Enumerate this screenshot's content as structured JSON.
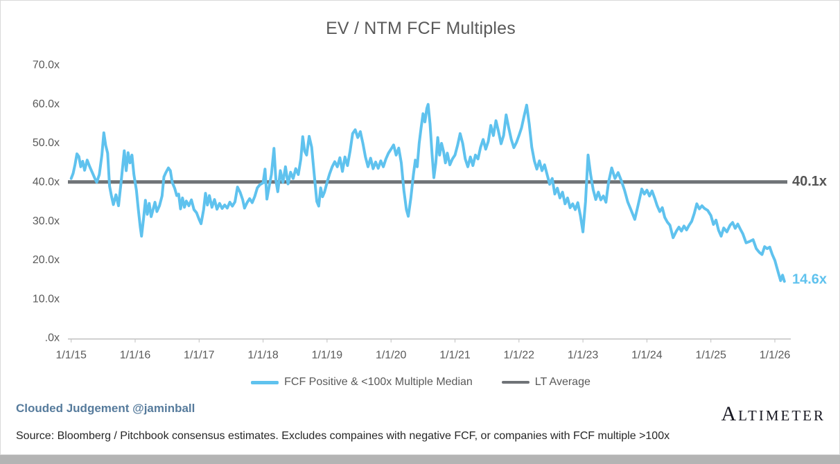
{
  "title": "EV / NTM FCF Multiples",
  "annotations": {
    "lt_average_label": "40.1x",
    "last_value_label": "14.6x"
  },
  "legend": {
    "fcf_label": "FCF Positive & <100x Multiple Median",
    "lt_label": "LT Average"
  },
  "footer": {
    "byline": "Clouded Judgement @jaminball",
    "brand": "Altimeter",
    "source": "Source: Bloomberg / Pitchbook consensus estimates. Excludes compaines with negative FCF, or companies with FCF multiple >100x"
  },
  "colors": {
    "fcf_line": "#5fc2ee",
    "lt_line": "#6f7377",
    "axis_text": "#595959",
    "axis_line": "#bfbfbf",
    "annotation_dark": "#555555"
  },
  "chart_data": {
    "type": "line",
    "title": "EV / NTM FCF Multiples",
    "xlabel": "",
    "ylabel": "",
    "ylim": [
      0,
      70
    ],
    "xlim_years_since_2015": [
      0,
      11.3
    ],
    "grid": false,
    "legend_position": "bottom",
    "y_ticks": [
      {
        "value": 70,
        "label": "70.0x"
      },
      {
        "value": 60,
        "label": "60.0x"
      },
      {
        "value": 50,
        "label": "50.0x"
      },
      {
        "value": 40,
        "label": "40.0x"
      },
      {
        "value": 30,
        "label": "30.0x"
      },
      {
        "value": 20,
        "label": "20.0x"
      },
      {
        "value": 10,
        "label": "10.0x"
      },
      {
        "value": 0,
        "label": ".0x"
      }
    ],
    "x_tick_labels": [
      "1/1/15",
      "1/1/16",
      "1/1/17",
      "1/1/18",
      "1/1/19",
      "1/1/20",
      "1/1/21",
      "1/1/22",
      "1/1/23",
      "1/1/24",
      "1/1/25",
      "1/1/26"
    ],
    "lt_average": 40.1,
    "last_value": 14.6,
    "series": [
      {
        "name": "FCF Positive & <100x Multiple Median",
        "color": "#5fc2ee",
        "points_t_years_since_2015_vs_multiple": [
          [
            0,
            41
          ],
          [
            0.03,
            42.3
          ],
          [
            0.06,
            44.5
          ],
          [
            0.09,
            47.3
          ],
          [
            0.12,
            46.6
          ],
          [
            0.15,
            44
          ],
          [
            0.18,
            45.4
          ],
          [
            0.21,
            43.1
          ],
          [
            0.25,
            45.7
          ],
          [
            0.29,
            44
          ],
          [
            0.33,
            42.5
          ],
          [
            0.37,
            41
          ],
          [
            0.4,
            40
          ],
          [
            0.44,
            42
          ],
          [
            0.48,
            47
          ],
          [
            0.51,
            52.7
          ],
          [
            0.54,
            49.5
          ],
          [
            0.57,
            47.5
          ],
          [
            0.6,
            39
          ],
          [
            0.63,
            36.5
          ],
          [
            0.66,
            34.3
          ],
          [
            0.7,
            36.8
          ],
          [
            0.74,
            34
          ],
          [
            0.78,
            40
          ],
          [
            0.83,
            48.1
          ],
          [
            0.86,
            43
          ],
          [
            0.89,
            47.6
          ],
          [
            0.92,
            45
          ],
          [
            0.95,
            47
          ],
          [
            0.98,
            42
          ],
          [
            1.02,
            38
          ],
          [
            1.05,
            33
          ],
          [
            1.08,
            28.5
          ],
          [
            1.1,
            26.2
          ],
          [
            1.13,
            30.5
          ],
          [
            1.16,
            35.4
          ],
          [
            1.19,
            31.8
          ],
          [
            1.22,
            34.6
          ],
          [
            1.25,
            31.2
          ],
          [
            1.28,
            33
          ],
          [
            1.31,
            34.9
          ],
          [
            1.34,
            32.5
          ],
          [
            1.38,
            34
          ],
          [
            1.42,
            36.5
          ],
          [
            1.45,
            41.4
          ],
          [
            1.48,
            42.5
          ],
          [
            1.52,
            43.7
          ],
          [
            1.55,
            43
          ],
          [
            1.58,
            40
          ],
          [
            1.62,
            38.4
          ],
          [
            1.65,
            36.6
          ],
          [
            1.68,
            37
          ],
          [
            1.71,
            33.2
          ],
          [
            1.74,
            36
          ],
          [
            1.77,
            33.6
          ],
          [
            1.8,
            35.2
          ],
          [
            1.84,
            34
          ],
          [
            1.88,
            35.5
          ],
          [
            1.92,
            33
          ],
          [
            1.96,
            32.2
          ],
          [
            2,
            30.5
          ],
          [
            2.03,
            29.4
          ],
          [
            2.07,
            33
          ],
          [
            2.1,
            37.2
          ],
          [
            2.13,
            34.2
          ],
          [
            2.16,
            36.6
          ],
          [
            2.2,
            33.6
          ],
          [
            2.24,
            35.6
          ],
          [
            2.28,
            33.1
          ],
          [
            2.32,
            34.6
          ],
          [
            2.36,
            33.3
          ],
          [
            2.4,
            34.2
          ],
          [
            2.44,
            33.4
          ],
          [
            2.48,
            34.9
          ],
          [
            2.52,
            33.9
          ],
          [
            2.56,
            35
          ],
          [
            2.6,
            38.8
          ],
          [
            2.64,
            37.5
          ],
          [
            2.68,
            35.6
          ],
          [
            2.71,
            33.4
          ],
          [
            2.75,
            34.8
          ],
          [
            2.79,
            35.8
          ],
          [
            2.83,
            34.8
          ],
          [
            2.87,
            36.4
          ],
          [
            2.91,
            38.6
          ],
          [
            2.95,
            39.4
          ],
          [
            3,
            39.9
          ],
          [
            3.03,
            43.4
          ],
          [
            3.06,
            35.7
          ],
          [
            3.09,
            38.5
          ],
          [
            3.13,
            42
          ],
          [
            3.17,
            48.7
          ],
          [
            3.2,
            40.5
          ],
          [
            3.23,
            37.6
          ],
          [
            3.27,
            43
          ],
          [
            3.31,
            40
          ],
          [
            3.35,
            44
          ],
          [
            3.39,
            39.6
          ],
          [
            3.43,
            42.6
          ],
          [
            3.47,
            41
          ],
          [
            3.51,
            43.5
          ],
          [
            3.55,
            42
          ],
          [
            3.59,
            46
          ],
          [
            3.62,
            51.7
          ],
          [
            3.65,
            48
          ],
          [
            3.68,
            47
          ],
          [
            3.72,
            51.8
          ],
          [
            3.76,
            49
          ],
          [
            3.8,
            42
          ],
          [
            3.84,
            35.1
          ],
          [
            3.87,
            33.9
          ],
          [
            3.9,
            38.6
          ],
          [
            3.93,
            36.3
          ],
          [
            3.96,
            37.5
          ],
          [
            4,
            40
          ],
          [
            4.04,
            42.2
          ],
          [
            4.08,
            44
          ],
          [
            4.12,
            45.3
          ],
          [
            4.16,
            44
          ],
          [
            4.2,
            46.3
          ],
          [
            4.24,
            42.8
          ],
          [
            4.28,
            46.5
          ],
          [
            4.32,
            44.3
          ],
          [
            4.36,
            48
          ],
          [
            4.4,
            52.5
          ],
          [
            4.44,
            53.5
          ],
          [
            4.48,
            51.5
          ],
          [
            4.52,
            53
          ],
          [
            4.56,
            50
          ],
          [
            4.6,
            46.5
          ],
          [
            4.64,
            44
          ],
          [
            4.68,
            46.2
          ],
          [
            4.72,
            43.5
          ],
          [
            4.76,
            45.2
          ],
          [
            4.8,
            43.6
          ],
          [
            4.84,
            45.5
          ],
          [
            4.88,
            44
          ],
          [
            4.92,
            46
          ],
          [
            4.96,
            47.5
          ],
          [
            5,
            48.5
          ],
          [
            5.04,
            49.6
          ],
          [
            5.08,
            47
          ],
          [
            5.12,
            48.8
          ],
          [
            5.16,
            45
          ],
          [
            5.2,
            38
          ],
          [
            5.24,
            33
          ],
          [
            5.27,
            31.3
          ],
          [
            5.31,
            36
          ],
          [
            5.35,
            42
          ],
          [
            5.38,
            45.7
          ],
          [
            5.41,
            44
          ],
          [
            5.44,
            50
          ],
          [
            5.47,
            54
          ],
          [
            5.5,
            57.6
          ],
          [
            5.53,
            55.5
          ],
          [
            5.56,
            59
          ],
          [
            5.58,
            60
          ],
          [
            5.61,
            55
          ],
          [
            5.64,
            47.5
          ],
          [
            5.67,
            41.2
          ],
          [
            5.7,
            45
          ],
          [
            5.73,
            51.5
          ],
          [
            5.76,
            47
          ],
          [
            5.79,
            50
          ],
          [
            5.82,
            48
          ],
          [
            5.85,
            45
          ],
          [
            5.88,
            47.5
          ],
          [
            5.92,
            44.5
          ],
          [
            5.96,
            46
          ],
          [
            6,
            47
          ],
          [
            6.04,
            49.5
          ],
          [
            6.08,
            52.5
          ],
          [
            6.12,
            50
          ],
          [
            6.16,
            46
          ],
          [
            6.2,
            44
          ],
          [
            6.24,
            46.5
          ],
          [
            6.28,
            44.3
          ],
          [
            6.32,
            47
          ],
          [
            6.36,
            46
          ],
          [
            6.4,
            49
          ],
          [
            6.44,
            51
          ],
          [
            6.48,
            48.5
          ],
          [
            6.52,
            50.5
          ],
          [
            6.56,
            54.6
          ],
          [
            6.6,
            52
          ],
          [
            6.64,
            55.8
          ],
          [
            6.68,
            53
          ],
          [
            6.72,
            49.9
          ],
          [
            6.76,
            52
          ],
          [
            6.8,
            57.3
          ],
          [
            6.84,
            54
          ],
          [
            6.88,
            51
          ],
          [
            6.92,
            48.9
          ],
          [
            6.96,
            50.2
          ],
          [
            7,
            52
          ],
          [
            7.04,
            54
          ],
          [
            7.08,
            57
          ],
          [
            7.12,
            59.8
          ],
          [
            7.16,
            55
          ],
          [
            7.2,
            49
          ],
          [
            7.24,
            45.5
          ],
          [
            7.28,
            43.4
          ],
          [
            7.32,
            45.5
          ],
          [
            7.36,
            43
          ],
          [
            7.4,
            44.5
          ],
          [
            7.44,
            42
          ],
          [
            7.48,
            39.5
          ],
          [
            7.52,
            41
          ],
          [
            7.56,
            37
          ],
          [
            7.6,
            38.5
          ],
          [
            7.64,
            36
          ],
          [
            7.68,
            37.5
          ],
          [
            7.72,
            34.5
          ],
          [
            7.76,
            36
          ],
          [
            7.8,
            33.5
          ],
          [
            7.84,
            34.5
          ],
          [
            7.88,
            33
          ],
          [
            7.92,
            34.8
          ],
          [
            7.96,
            31.5
          ],
          [
            8,
            27.3
          ],
          [
            8.04,
            35
          ],
          [
            8.08,
            47
          ],
          [
            8.12,
            42
          ],
          [
            8.16,
            38.1
          ],
          [
            8.2,
            35.6
          ],
          [
            8.24,
            37.5
          ],
          [
            8.28,
            35.5
          ],
          [
            8.32,
            36.5
          ],
          [
            8.36,
            34.9
          ],
          [
            8.4,
            40
          ],
          [
            8.45,
            43.7
          ],
          [
            8.5,
            41
          ],
          [
            8.55,
            42.5
          ],
          [
            8.6,
            40.4
          ],
          [
            8.65,
            38
          ],
          [
            8.7,
            35
          ],
          [
            8.75,
            33
          ],
          [
            8.81,
            30.5
          ],
          [
            8.86,
            34
          ],
          [
            8.92,
            38.3
          ],
          [
            8.96,
            37
          ],
          [
            9,
            38
          ],
          [
            9.04,
            36.5
          ],
          [
            9.08,
            37.8
          ],
          [
            9.12,
            36
          ],
          [
            9.16,
            34
          ],
          [
            9.2,
            32.5
          ],
          [
            9.24,
            33.5
          ],
          [
            9.28,
            31
          ],
          [
            9.32,
            29.8
          ],
          [
            9.36,
            29
          ],
          [
            9.41,
            25.8
          ],
          [
            9.46,
            27.5
          ],
          [
            9.5,
            28.5
          ],
          [
            9.54,
            27.5
          ],
          [
            9.58,
            28.8
          ],
          [
            9.62,
            27.8
          ],
          [
            9.66,
            29
          ],
          [
            9.7,
            30
          ],
          [
            9.74,
            32
          ],
          [
            9.78,
            34.5
          ],
          [
            9.82,
            33.2
          ],
          [
            9.86,
            34
          ],
          [
            9.9,
            33.3
          ],
          [
            9.95,
            32.8
          ],
          [
            10,
            31.5
          ],
          [
            10.04,
            29.2
          ],
          [
            10.08,
            30.3
          ],
          [
            10.12,
            27.7
          ],
          [
            10.16,
            26.2
          ],
          [
            10.2,
            28.3
          ],
          [
            10.25,
            27.3
          ],
          [
            10.3,
            29
          ],
          [
            10.34,
            29.7
          ],
          [
            10.38,
            28.2
          ],
          [
            10.42,
            29.3
          ],
          [
            10.46,
            28
          ],
          [
            10.5,
            26.8
          ],
          [
            10.55,
            24.5
          ],
          [
            10.6,
            24.8
          ],
          [
            10.66,
            25.3
          ],
          [
            10.71,
            23
          ],
          [
            10.76,
            22
          ],
          [
            10.8,
            21.5
          ],
          [
            10.84,
            23.5
          ],
          [
            10.88,
            23
          ],
          [
            10.92,
            23.4
          ],
          [
            10.96,
            21.5
          ],
          [
            11,
            20
          ],
          [
            11.03,
            18.2
          ],
          [
            11.06,
            16.5
          ],
          [
            11.09,
            14.8
          ],
          [
            11.12,
            16.2
          ],
          [
            11.15,
            14.6
          ]
        ]
      },
      {
        "name": "LT Average",
        "type": "hline",
        "value": 40.1,
        "color": "#6f7377"
      }
    ]
  }
}
